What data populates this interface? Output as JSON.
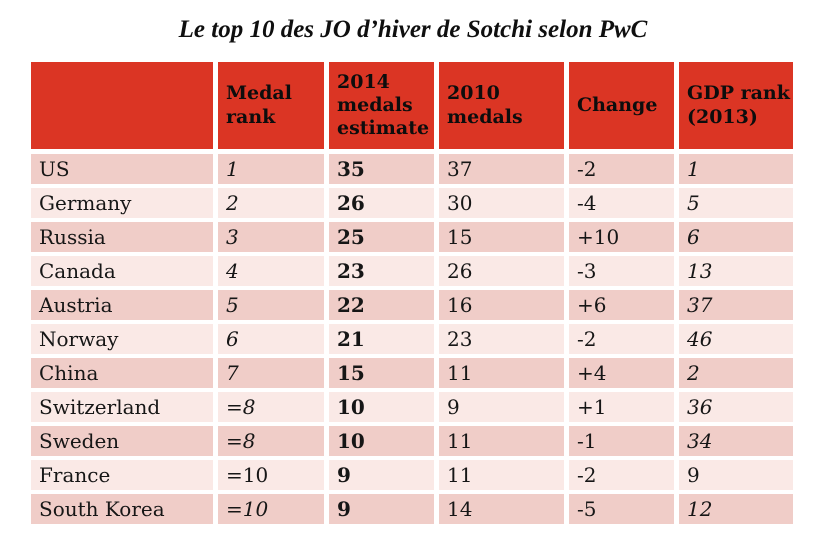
{
  "colors": {
    "header_red": "#db3524",
    "row_dark_pink": "#f0cdc8",
    "row_light_pink": "#fae9e6",
    "text": "#161616",
    "background": "#ffffff"
  },
  "chart_data": {
    "type": "table",
    "title": "Le top 10 des JO d’hiver de Sotchi selon PwC",
    "columns": [
      "",
      "Medal rank",
      "2014 medals estimate",
      "2010 medals",
      "Change",
      "GDP rank (2013)"
    ],
    "rows": [
      {
        "country": "US",
        "medal_rank": "1",
        "medals_2014": "35",
        "medals_2010": "37",
        "change": "-2",
        "gdp_rank": "1"
      },
      {
        "country": "Germany",
        "medal_rank": "2",
        "medals_2014": "26",
        "medals_2010": "30",
        "change": "-4",
        "gdp_rank": "5"
      },
      {
        "country": "Russia",
        "medal_rank": "3",
        "medals_2014": "25",
        "medals_2010": "15",
        "change": "+10",
        "gdp_rank": "6"
      },
      {
        "country": "Canada",
        "medal_rank": "4",
        "medals_2014": "23",
        "medals_2010": "26",
        "change": "-3",
        "gdp_rank": "13"
      },
      {
        "country": "Austria",
        "medal_rank": "5",
        "medals_2014": "22",
        "medals_2010": "16",
        "change": "+6",
        "gdp_rank": "37"
      },
      {
        "country": "Norway",
        "medal_rank": "6",
        "medals_2014": "21",
        "medals_2010": "23",
        "change": "-2",
        "gdp_rank": "46"
      },
      {
        "country": "China",
        "medal_rank": "7",
        "medals_2014": "15",
        "medals_2010": "11",
        "change": "+4",
        "gdp_rank": "2"
      },
      {
        "country": "Switzerland",
        "medal_rank": "=8",
        "medals_2014": "10",
        "medals_2010": "9",
        "change": "+1",
        "gdp_rank": "36"
      },
      {
        "country": "Sweden",
        "medal_rank": "=8",
        "medals_2014": "10",
        "medals_2010": "11",
        "change": "-1",
        "gdp_rank": "34"
      },
      {
        "country": "France",
        "medal_rank": "=10",
        "medals_2014": "9",
        "medals_2010": "11",
        "change": "-2",
        "gdp_rank": "9",
        "italic_numbers": false
      },
      {
        "country": "South Korea",
        "medal_rank": "=10",
        "medals_2014": "9",
        "medals_2010": "14",
        "change": "-5",
        "gdp_rank": "12"
      }
    ],
    "layout": {
      "stripe_order": "first_row_dark",
      "bold_column": "medals_2014",
      "italic_columns": [
        "medal_rank",
        "gdp_rank"
      ]
    }
  }
}
